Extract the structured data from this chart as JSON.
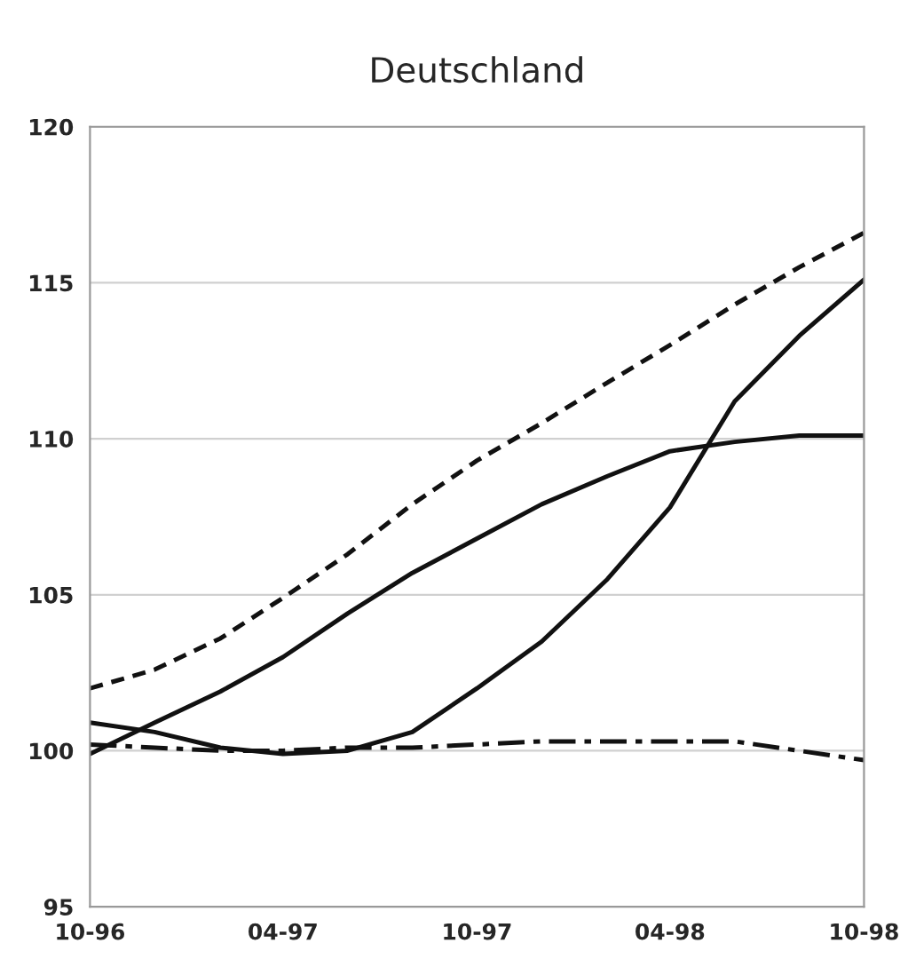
{
  "chart_data": {
    "type": "line",
    "title": "Deutschland",
    "x": [
      "1996-10",
      "1996-12",
      "1997-02",
      "1997-04",
      "1997-06",
      "1997-08",
      "1997-10",
      "1997-12",
      "1998-02",
      "1998-04",
      "1998-06",
      "1998-08",
      "1998-10"
    ],
    "series": [
      {
        "color": "#111111",
        "line_style": "dashed",
        "values": [
          102.0,
          102.6,
          103.6,
          104.9,
          106.3,
          107.9,
          109.3,
          110.5,
          111.8,
          113.0,
          114.3,
          115.5,
          116.6
        ]
      },
      {
        "color": "#111111",
        "line_style": "solid",
        "values": [
          99.9,
          100.9,
          101.9,
          103.0,
          104.4,
          105.7,
          106.8,
          107.9,
          108.8,
          109.6,
          109.9,
          110.1,
          110.1
        ]
      },
      {
        "color": "#111111",
        "line_style": "solid",
        "values": [
          100.9,
          100.6,
          100.1,
          99.9,
          100.0,
          100.6,
          102.0,
          103.5,
          105.5,
          107.8,
          111.2,
          113.3,
          115.1
        ]
      },
      {
        "color": "#111111",
        "line_style": "dashdot",
        "values": [
          100.2,
          100.1,
          100.0,
          100.0,
          100.1,
          100.1,
          100.2,
          100.3,
          100.3,
          100.3,
          100.3,
          100.0,
          99.7
        ]
      }
    ],
    "xlim": [
      "1996-10",
      "1998-10"
    ],
    "xticks": [
      {
        "value": "1996-10",
        "label": "10-96"
      },
      {
        "value": "1997-04",
        "label": "04-97"
      },
      {
        "value": "1997-10",
        "label": "10-97"
      },
      {
        "value": "1998-04",
        "label": "04-98"
      },
      {
        "value": "1998-10",
        "label": "10-98"
      }
    ],
    "ylim": [
      95,
      120
    ],
    "yticks": [
      95,
      100,
      105,
      110,
      115,
      120
    ],
    "grid": "y",
    "marker": "none"
  }
}
